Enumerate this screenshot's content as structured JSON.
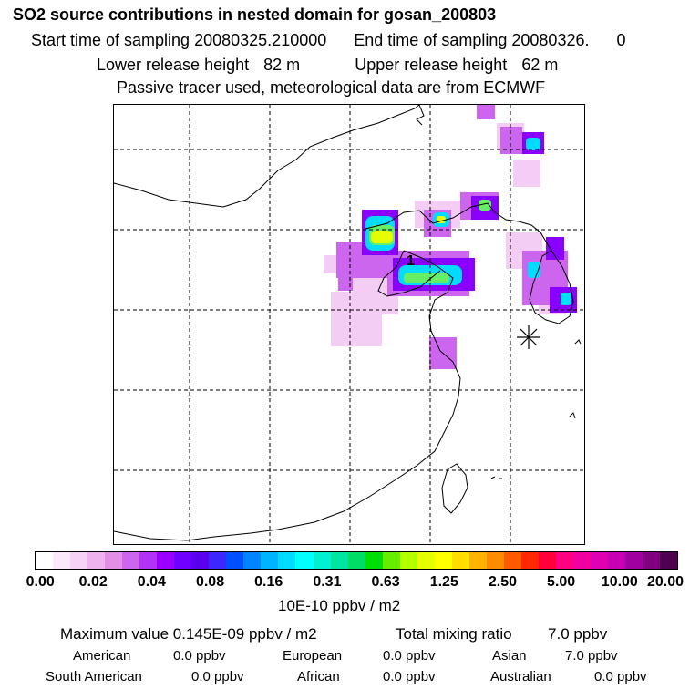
{
  "header": {
    "title": "SO2 source contributions in nested domain for gosan_200803",
    "start_label": "Start time of sampling",
    "start_value": "20080325.210000",
    "end_label": "End time of sampling",
    "end_value": "20080326.",
    "end_hour": "0",
    "lower_label": "Lower release height",
    "lower_value": "82 m",
    "upper_label": "Upper release height",
    "upper_value": "62 m",
    "note": "Passive tracer used, meteorological data are from ECMWF"
  },
  "map": {
    "receptor_marker": "asterisk-receptor",
    "source_label": "1"
  },
  "colorbar": {
    "colors": [
      "#ffffff",
      "#fbe8fb",
      "#f6d2f6",
      "#eeb3ee",
      "#e28fe6",
      "#cc66ee",
      "#b233f5",
      "#9a00ff",
      "#7000ff",
      "#5a00ee",
      "#3c28ff",
      "#0050ff",
      "#0084ff",
      "#00b4ff",
      "#00dcff",
      "#00ffff",
      "#00f0d0",
      "#00e6a0",
      "#00dd66",
      "#00dd00",
      "#66ee00",
      "#b4ff00",
      "#e6ff00",
      "#ffff00",
      "#ffdd00",
      "#ffb400",
      "#ff8c00",
      "#ff5a00",
      "#ff2800",
      "#ff003c",
      "#ff0080",
      "#f000a0",
      "#e000b4",
      "#c800b4",
      "#a000a0",
      "#800080",
      "#500050"
    ],
    "ticks": [
      "0.00",
      "0.02",
      "0.04",
      "0.08",
      "0.16",
      "0.31",
      "0.63",
      "1.25",
      "2.50",
      "5.00",
      "10.00",
      "20.00"
    ],
    "unit": "10E-10 ppbv / m2"
  },
  "stats": {
    "max_label": "Maximum value",
    "max_value": "0.145E-09 ppbv / m2",
    "total_label": "Total mixing ratio",
    "total_value": "7.0 ppbv",
    "american_label": "American",
    "american_value": "0.0 ppbv",
    "european_label": "European",
    "european_value": "0.0 ppbv",
    "asian_label": "Asian",
    "asian_value": "7.0 ppbv",
    "south_american_label": "South American",
    "south_american_value": "0.0 ppbv",
    "african_label": "African",
    "african_value": "0.0 ppbv",
    "australian_label": "Australian",
    "australian_value": "0.0 ppbv"
  }
}
